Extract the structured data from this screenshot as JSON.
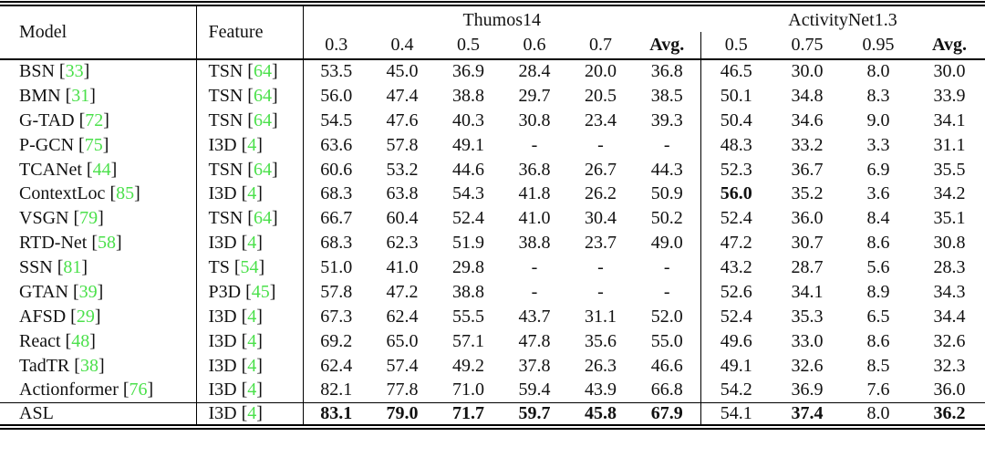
{
  "colors": {
    "citation_green": "#4be04b",
    "text": "#111111",
    "rule": "#000000"
  },
  "table": {
    "header": {
      "model_label": "Model",
      "feature_label": "Feature",
      "group_thumos": "Thumos14",
      "group_anet": "ActivityNet1.3",
      "thumos_ticks": [
        "0.3",
        "0.4",
        "0.5",
        "0.6",
        "0.7",
        "Avg."
      ],
      "anet_ticks": [
        "0.5",
        "0.75",
        "0.95",
        "Avg."
      ]
    },
    "rows": [
      {
        "model": "BSN",
        "model_cite": "33",
        "feature": "TSN",
        "feature_cite": "64",
        "cells": [
          "53.5",
          "45.0",
          "36.9",
          "28.4",
          "20.0",
          "36.8",
          "46.5",
          "30.0",
          "8.0",
          "30.0"
        ],
        "bold": []
      },
      {
        "model": "BMN",
        "model_cite": "31",
        "feature": "TSN",
        "feature_cite": "64",
        "cells": [
          "56.0",
          "47.4",
          "38.8",
          "29.7",
          "20.5",
          "38.5",
          "50.1",
          "34.8",
          "8.3",
          "33.9"
        ],
        "bold": []
      },
      {
        "model": "G-TAD",
        "model_cite": "72",
        "feature": "TSN",
        "feature_cite": "64",
        "cells": [
          "54.5",
          "47.6",
          "40.3",
          "30.8",
          "23.4",
          "39.3",
          "50.4",
          "34.6",
          "9.0",
          "34.1"
        ],
        "bold": []
      },
      {
        "model": "P-GCN",
        "model_cite": "75",
        "feature": "I3D",
        "feature_cite": "4",
        "cells": [
          "63.6",
          "57.8",
          "49.1",
          "-",
          "-",
          "-",
          "48.3",
          "33.2",
          "3.3",
          "31.1"
        ],
        "bold": []
      },
      {
        "model": "TCANet",
        "model_cite": "44",
        "feature": "TSN",
        "feature_cite": "64",
        "cells": [
          "60.6",
          "53.2",
          "44.6",
          "36.8",
          "26.7",
          "44.3",
          "52.3",
          "36.7",
          "6.9",
          "35.5"
        ],
        "bold": []
      },
      {
        "model": "ContextLoc",
        "model_cite": "85",
        "feature": "I3D",
        "feature_cite": "4",
        "cells": [
          "68.3",
          "63.8",
          "54.3",
          "41.8",
          "26.2",
          "50.9",
          "56.0",
          "35.2",
          "3.6",
          "34.2"
        ],
        "bold": [
          6
        ]
      },
      {
        "model": "VSGN",
        "model_cite": "79",
        "feature": "TSN",
        "feature_cite": "64",
        "cells": [
          "66.7",
          "60.4",
          "52.4",
          "41.0",
          "30.4",
          "50.2",
          "52.4",
          "36.0",
          "8.4",
          "35.1"
        ],
        "bold": []
      },
      {
        "model": "RTD-Net",
        "model_cite": "58",
        "feature": "I3D",
        "feature_cite": "4",
        "cells": [
          "68.3",
          "62.3",
          "51.9",
          "38.8",
          "23.7",
          "49.0",
          "47.2",
          "30.7",
          "8.6",
          "30.8"
        ],
        "bold": []
      },
      {
        "model": "SSN",
        "model_cite": "81",
        "feature": "TS",
        "feature_cite": "54",
        "cells": [
          "51.0",
          "41.0",
          "29.8",
          "-",
          "-",
          "-",
          "43.2",
          "28.7",
          "5.6",
          "28.3"
        ],
        "bold": []
      },
      {
        "model": "GTAN",
        "model_cite": "39",
        "feature": "P3D",
        "feature_cite": "45",
        "cells": [
          "57.8",
          "47.2",
          "38.8",
          "-",
          "-",
          "-",
          "52.6",
          "34.1",
          "8.9",
          "34.3"
        ],
        "bold": []
      },
      {
        "model": "AFSD",
        "model_cite": "29",
        "feature": "I3D",
        "feature_cite": "4",
        "cells": [
          "67.3",
          "62.4",
          "55.5",
          "43.7",
          "31.1",
          "52.0",
          "52.4",
          "35.3",
          "6.5",
          "34.4"
        ],
        "bold": []
      },
      {
        "model": "React",
        "model_cite": "48",
        "feature": "I3D",
        "feature_cite": "4",
        "cells": [
          "69.2",
          "65.0",
          "57.1",
          "47.8",
          "35.6",
          "55.0",
          "49.6",
          "33.0",
          "8.6",
          "32.6"
        ],
        "bold": []
      },
      {
        "model": "TadTR",
        "model_cite": "38",
        "feature": "I3D",
        "feature_cite": "4",
        "cells": [
          "62.4",
          "57.4",
          "49.2",
          "37.8",
          "26.3",
          "46.6",
          "49.1",
          "32.6",
          "8.5",
          "32.3"
        ],
        "bold": []
      },
      {
        "model": "Actionformer",
        "model_cite": "76",
        "feature": "I3D",
        "feature_cite": "4",
        "cells": [
          "82.1",
          "77.8",
          "71.0",
          "59.4",
          "43.9",
          "66.8",
          "54.2",
          "36.9",
          "7.6",
          "36.0"
        ],
        "bold": []
      },
      {
        "model": "ASL",
        "model_cite": null,
        "feature": "I3D",
        "feature_cite": "4",
        "top_rule": true,
        "cells": [
          "83.1",
          "79.0",
          "71.7",
          "59.7",
          "45.8",
          "67.9",
          "54.1",
          "37.4",
          "8.0",
          "36.2"
        ],
        "bold": [
          0,
          1,
          2,
          3,
          4,
          5,
          7,
          9
        ]
      }
    ]
  }
}
